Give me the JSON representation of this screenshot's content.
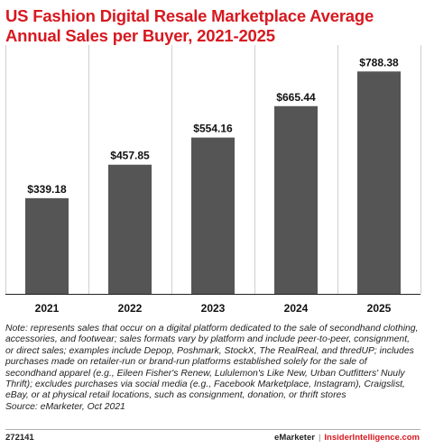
{
  "chart_data": {
    "type": "bar",
    "title": "US Fashion Digital Resale Marketplace Average Annual Sales per Buyer, 2021-2025",
    "categories": [
      "2021",
      "2022",
      "2023",
      "2024",
      "2025"
    ],
    "values": [
      339.18,
      457.85,
      554.16,
      665.44,
      788.38
    ],
    "value_labels": [
      "$339.18",
      "$457.85",
      "$554.16",
      "$665.44",
      "$788.38"
    ],
    "xlabel": "",
    "ylabel": "",
    "ylim": [
      0,
      850
    ],
    "grid": true,
    "bar_color": "#555555"
  },
  "note": "Note: represents sales that occur on a digital platform dedicated to the sale of secondhand clothing, accessories, and footwear; sales formats vary by platform and include peer-to-peer, consignment, or direct sales; examples include Depop, Poshmark, StockX, The RealReal, and thredUP; includes purchases made on retailer-run or brand-run platforms established solely for the sale of secondhand apparel (e.g., Eileen Fisher's Renew, Lululemon's Like New, Urban Outfitters' Nuuly Thrift); excludes purchases via social media (e.g., Facebook Marketplace, Instagram), Craigslist, eBay, or at physical retail locations, such as consignment, donation, or thrift stores",
  "source": "Source: eMarketer, Oct 2021",
  "footer": {
    "id": "272141",
    "brand": "eMarketer",
    "separator": "|",
    "site": "InsiderIntelligence.com"
  },
  "colors": {
    "title": "#d71920",
    "bar": "#555555",
    "grid": "#cfcfcf"
  }
}
